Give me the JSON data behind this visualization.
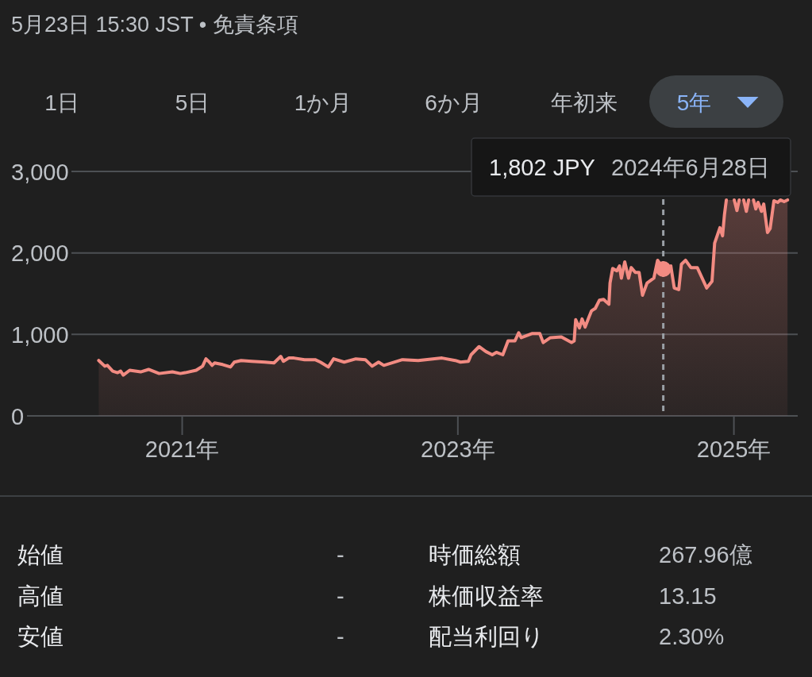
{
  "chart_data": [
    {
      "type": "other",
      "title": "5月23日 15:30 JST • 免責条項",
      "annotations": [
        "1日",
        "5日",
        "1か月",
        "6か月",
        "年初来",
        "5年"
      ]
    },
    {
      "type": "area",
      "x": [
        "2020-05-25",
        "2020-06-10",
        "2020-06-17",
        "2020-07-01",
        "2020-07-14",
        "2020-07-22",
        "2020-07-29",
        "2020-08-15",
        "2020-09-13",
        "2020-10-04",
        "2020-11-01",
        "2020-12-06",
        "2020-12-27",
        "2021-01-09",
        "2021-02-07",
        "2021-02-24",
        "2021-03-05",
        "2021-03-14",
        "2021-03-21",
        "2021-03-28",
        "2021-04-18",
        "2021-05-09",
        "2021-05-19",
        "2021-06-06",
        "2021-07-04",
        "2021-08-08",
        "2021-09-01",
        "2021-09-19",
        "2021-09-26",
        "2021-10-10",
        "2021-10-24",
        "2021-11-21",
        "2021-12-19",
        "2022-01-02",
        "2022-01-23",
        "2022-02-06",
        "2022-03-06",
        "2022-04-06",
        "2022-05-01",
        "2022-05-19",
        "2022-06-05",
        "2022-06-19",
        "2022-08-07",
        "2022-09-18",
        "2022-11-20",
        "2022-12-25",
        "2023-01-08",
        "2023-01-29",
        "2023-02-05",
        "2023-02-26",
        "2023-03-16",
        "2023-04-02",
        "2023-04-13",
        "2023-04-30",
        "2023-05-14",
        "2023-06-01",
        "2023-06-11",
        "2023-06-18",
        "2023-07-16",
        "2023-08-06",
        "2023-08-15",
        "2023-09-03",
        "2023-10-02",
        "2023-10-29",
        "2023-11-05",
        "2023-11-09",
        "2023-11-19",
        "2023-11-26",
        "2023-12-04",
        "2023-12-14",
        "2023-12-21",
        "2023-12-31",
        "2024-01-11",
        "2024-01-22",
        "2024-02-05",
        "2024-02-08",
        "2024-02-15",
        "2024-02-26",
        "2024-03-04",
        "2024-03-09",
        "2024-03-18",
        "2024-03-28",
        "2024-04-04",
        "2024-04-15",
        "2024-04-25",
        "2024-05-04",
        "2024-05-16",
        "2024-06-03",
        "2024-06-13",
        "2024-06-28",
        "2024-07-18",
        "2024-07-27",
        "2024-08-08",
        "2024-08-15",
        "2024-08-26",
        "2024-09-09",
        "2024-09-26",
        "2024-10-21",
        "2024-11-04",
        "2024-11-11",
        "2024-11-25",
        "2024-12-02",
        "2024-12-07",
        "2024-12-12",
        "2024-12-23",
        "2025-01-02",
        "2025-01-09",
        "2025-01-15",
        "2025-01-23",
        "2025-01-27",
        "2025-02-03",
        "2025-02-09",
        "2025-02-16",
        "2025-02-22",
        "2025-02-28",
        "2025-03-06",
        "2025-03-15",
        "2025-03-21",
        "2025-03-31",
        "2025-04-07",
        "2025-04-17",
        "2025-04-27",
        "2025-05-04",
        "2025-05-14",
        "2025-05-23"
      ],
      "series": [
        {
          "type": "area",
          "color": "#f28b82",
          "values": [
            680,
            610,
            620,
            550,
            530,
            550,
            500,
            560,
            540,
            570,
            520,
            540,
            520,
            530,
            560,
            610,
            700,
            660,
            620,
            650,
            630,
            600,
            660,
            680,
            670,
            660,
            650,
            730,
            670,
            710,
            710,
            690,
            690,
            660,
            600,
            700,
            660,
            700,
            690,
            610,
            660,
            620,
            690,
            680,
            710,
            680,
            660,
            670,
            750,
            850,
            790,
            750,
            780,
            750,
            920,
            920,
            1020,
            960,
            1010,
            1010,
            900,
            960,
            970,
            900,
            920,
            1180,
            1080,
            1190,
            1090,
            1210,
            1290,
            1320,
            1420,
            1430,
            1370,
            1630,
            1810,
            1780,
            1840,
            1690,
            1890,
            1690,
            1820,
            1760,
            1760,
            1480,
            1630,
            1690,
            1910,
            1800,
            1840,
            1570,
            1550,
            1860,
            1910,
            1820,
            1820,
            1570,
            1650,
            2120,
            2310,
            2210,
            2470,
            2650,
            null,
            2650,
            2520,
            2650,
            null,
            2650,
            2510,
            2650,
            null,
            2650,
            2540,
            2620,
            2510,
            2600,
            2250,
            2300,
            2640,
            2620,
            2650,
            2630,
            2650
          ]
        },
        {
          "type": "scatter",
          "color": "#f28b82",
          "marker": "circle",
          "x": [
            "2024-06-28"
          ],
          "values": [
            1802
          ]
        }
      ],
      "xlim": [
        "2019-11-17",
        "2025-06-19"
      ],
      "xticks": [
        {
          "value": "2021-01-01",
          "label": "2021年"
        },
        {
          "value": "2023-01-01",
          "label": "2023年"
        },
        {
          "value": "2025-01-01",
          "label": "2025年"
        }
      ],
      "ylim": [
        0,
        3000
      ],
      "yticks": [
        0,
        {
          "value": 1000,
          "label": "1,000"
        },
        {
          "value": 2000,
          "label": "2,000"
        },
        {
          "value": 3000,
          "label": "3,000"
        }
      ],
      "grid": "y",
      "ref_lines": [
        {
          "axis": "x",
          "value": "2024-06-28",
          "line_style": "dashed",
          "color": "#9aa0a6"
        }
      ],
      "annotations": [
        "1,802 JPY",
        "2024年6月28日"
      ]
    },
    {
      "type": "other",
      "annotations": [
        "始値",
        "-",
        "高値",
        "-",
        "安値",
        "-",
        "時価総額",
        "267.96億",
        "株価収益率",
        "13.15",
        "配当利回り",
        "2.30%"
      ]
    }
  ]
}
